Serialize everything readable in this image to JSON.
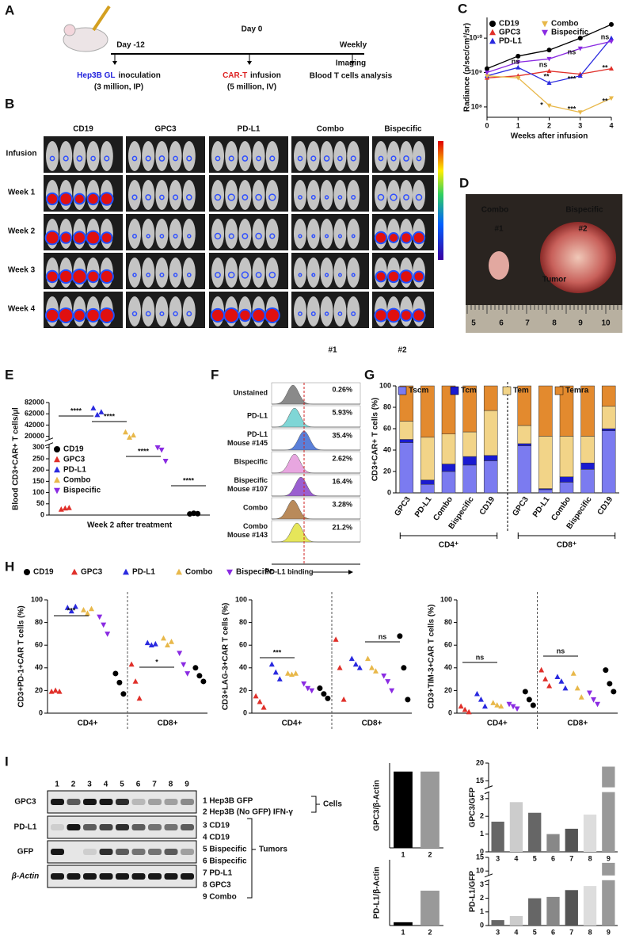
{
  "figure": {
    "A": {
      "label": "A",
      "day_minus12": "Day -12",
      "day0": "Day 0",
      "weekly": "Weekly",
      "inoculation_cells": "Hep3B GL",
      "inoculation": "inoculation",
      "inoculation_detail": "(3 million, IP)",
      "infusion_cells": "CAR-T",
      "infusion": "infusion",
      "infusion_detail": "(5 million, IV)",
      "imaging": "Imaging",
      "analysis": "Blood T cells analysis"
    },
    "B": {
      "label": "B",
      "columns": [
        "CD19",
        "GPC3",
        "PD-L1",
        "Combo",
        "Bispecific"
      ],
      "rows": [
        "Infusion",
        "Week 1",
        "Week 2",
        "Week 3",
        "Week 4"
      ],
      "tags": [
        "#1",
        "#2"
      ]
    },
    "D": {
      "label": "D",
      "groups": [
        "Combo",
        "Bispecific"
      ],
      "tags": [
        "#1",
        "#2"
      ],
      "tumor": "Tumor",
      "ruler": [
        "5",
        "6",
        "7",
        "8",
        "9",
        "10"
      ]
    },
    "F": {
      "label": "F",
      "xlabel": "PD-L1 binding",
      "rows": [
        {
          "label": [
            "Unstained"
          ],
          "percent": "0.26%",
          "color": "#8a8a8a"
        },
        {
          "label": [
            "PD-L1"
          ],
          "percent": "5.93%",
          "color": "#7fd6d6"
        },
        {
          "label": [
            "PD-L1",
            "Mouse #145"
          ],
          "percent": "35.4%",
          "color": "#5a7fd9"
        },
        {
          "label": [
            "Bispecific"
          ],
          "percent": "2.62%",
          "color": "#e8a6e0"
        },
        {
          "label": [
            "Bispecific",
            "Mouse #107"
          ],
          "percent": "16.4%",
          "color": "#9a5fd0"
        },
        {
          "label": [
            "Combo"
          ],
          "percent": "3.28%",
          "color": "#b98a5a"
        },
        {
          "label": [
            "Combo",
            "Mouse #143"
          ],
          "percent": "21.2%",
          "color": "#e6e65a"
        }
      ]
    },
    "I": {
      "label": "I",
      "lanes": [
        "1",
        "2",
        "3",
        "4",
        "5",
        "6",
        "7",
        "8",
        "9"
      ],
      "blots": [
        "GPC3",
        "PD-L1",
        "GFP",
        "β-Actin"
      ],
      "cells": [
        "1 Hep3B GFP",
        "2 Hep3B (No GFP) IFN-γ"
      ],
      "cells_label": "Cells",
      "tumors": [
        "3 CD19",
        "4 CD19",
        "5 Bispecific",
        "6 Bispecific",
        "7 PD-L1",
        "8 GPC3",
        "9 Combo"
      ],
      "tumors_label": "Tumors"
    }
  },
  "chart_data": [
    {
      "type": "line",
      "label": "C",
      "ylabel": "Radiance (p/sec/cm²/sr)",
      "xlabel": "Weeks after infusion",
      "x": [
        0,
        1,
        2,
        3,
        4
      ],
      "xlim": [
        0,
        4
      ],
      "xticks": [
        0,
        1,
        2,
        3,
        4
      ],
      "log": true,
      "ylim": [
        50000000,
        40000000000
      ],
      "yticks": [
        {
          "value": 100000000,
          "label": "10⁸"
        },
        {
          "value": 1000000000,
          "label": "10⁹"
        },
        {
          "value": 10000000000,
          "label": "10¹⁰"
        }
      ],
      "legend": "top",
      "series": [
        {
          "name": "CD19",
          "color": "#000000",
          "marker": "circle",
          "values": [
            1300000000,
            3000000000,
            4500000000,
            10000000000,
            25000000000
          ]
        },
        {
          "name": "GPC3",
          "color": "#e0302a",
          "marker": "triangle-up",
          "values": [
            700000000,
            800000000,
            1100000000,
            900000000,
            1300000000
          ]
        },
        {
          "name": "PD-L1",
          "color": "#2a2adf",
          "marker": "triangle-up",
          "values": [
            800000000,
            1400000000,
            500000000,
            800000000,
            10000000000
          ]
        },
        {
          "name": "Combo",
          "color": "#e8b84a",
          "marker": "triangle-down",
          "values": [
            800000000,
            700000000,
            110000000,
            70000000,
            180000000
          ]
        },
        {
          "name": "Bispecific",
          "color": "#8a2be2",
          "marker": "triangle-down",
          "values": [
            1000000000,
            2000000000,
            2500000000,
            5000000000,
            8000000000
          ]
        }
      ],
      "annotations": [
        "ns",
        "ns",
        "**",
        "*",
        "ns",
        "***",
        "***",
        "ns",
        "**",
        "**"
      ]
    },
    {
      "type": "dot",
      "label": "E",
      "ylabel": "Blood CD3+CAR+ T cells/µl",
      "xlabel": "Week 2 after treatment",
      "ylim": [
        0,
        82000
      ],
      "yticks": [
        0,
        50,
        100,
        150,
        200,
        250,
        300,
        20000,
        42000,
        62000,
        82000
      ],
      "axis_break": true,
      "legend": "left",
      "series": [
        {
          "name": "CD19",
          "color": "#000000",
          "marker": "circle",
          "values": [
            [
              5,
              8,
              6
            ]
          ]
        },
        {
          "name": "GPC3",
          "color": "#e0302a",
          "marker": "triangle-up",
          "values": [
            [
              25,
              30,
              32
            ]
          ]
        },
        {
          "name": "PD-L1",
          "color": "#2a2adf",
          "marker": "triangle-up",
          "values": [
            [
              72000,
              60000,
              65000
            ]
          ]
        },
        {
          "name": "Combo",
          "color": "#e8b84a",
          "marker": "triangle-up",
          "values": [
            [
              28000,
              18000,
              22000
            ]
          ]
        },
        {
          "name": "Bispecific",
          "color": "#8a2be2",
          "marker": "triangle-down",
          "values": [
            [
              330,
              290,
              240
            ]
          ]
        }
      ],
      "annotations": [
        "****",
        "****",
        "****",
        "****"
      ]
    },
    {
      "type": "stacked_bar",
      "label": "G",
      "ylabel": "CD3+CAR+ T cells (%)",
      "categories": [
        "GPC3",
        "PD-L1",
        "Combo",
        "Bispecific",
        "CD19",
        "GPC3",
        "PD-L1",
        "Combo",
        "Bispecific",
        "CD19"
      ],
      "groups": [
        "CD4⁺",
        "CD8⁺"
      ],
      "ylim": [
        0,
        100
      ],
      "yticks": [
        0,
        20,
        40,
        60,
        80,
        100
      ],
      "legend": "top",
      "series": [
        {
          "name": "Tscm",
          "color": "#7b7bf0",
          "values": [
            47,
            8,
            20,
            26,
            30,
            44,
            3,
            10,
            22,
            58
          ]
        },
        {
          "name": "Tcm",
          "color": "#1a1ad0",
          "values": [
            3,
            4,
            7,
            8,
            5,
            2,
            1,
            5,
            6,
            2
          ]
        },
        {
          "name": "Tem",
          "color": "#f2d488",
          "values": [
            17,
            40,
            28,
            23,
            42,
            17,
            49,
            38,
            25,
            21
          ]
        },
        {
          "name": "Temra",
          "color": "#e38a2e",
          "values": [
            33,
            48,
            45,
            43,
            23,
            37,
            47,
            47,
            47,
            19
          ]
        }
      ]
    },
    {
      "type": "dot",
      "label": "H",
      "ylabel": "CD3+PD-1+CAR T cells (%)",
      "categories": [
        "CD4+",
        "CD8+"
      ],
      "ylim": [
        0,
        100
      ],
      "yticks": [
        0,
        20,
        40,
        60,
        80,
        100
      ],
      "legend": "top",
      "series": [
        {
          "name": "CD19",
          "color": "#000000",
          "marker": "circle",
          "values": [
            [
              35,
              27,
              17
            ],
            [
              40,
              33,
              28
            ]
          ]
        },
        {
          "name": "GPC3",
          "color": "#e0302a",
          "marker": "triangle-up",
          "values": [
            [
              19,
              20,
              19
            ],
            [
              43,
              28,
              13
            ]
          ]
        },
        {
          "name": "PD-L1",
          "color": "#2a2adf",
          "marker": "triangle-up",
          "values": [
            [
              93,
              90,
              94
            ],
            [
              62,
              60,
              61
            ]
          ]
        },
        {
          "name": "Combo",
          "color": "#e8b84a",
          "marker": "triangle-up",
          "values": [
            [
              91,
              88,
              92
            ],
            [
              66,
              60,
              63
            ]
          ]
        },
        {
          "name": "Bispecific",
          "color": "#8a2be2",
          "marker": "triangle-down",
          "values": [
            [
              85,
              78,
              70
            ],
            [
              53,
              43,
              35
            ]
          ]
        }
      ],
      "annotations": [
        "***",
        "*"
      ]
    },
    {
      "type": "dot",
      "ylabel": "CD3+LAG-3+CAR T cells (%)",
      "categories": [
        "CD4+",
        "CD8+"
      ],
      "ylim": [
        0,
        100
      ],
      "yticks": [
        0,
        20,
        40,
        60,
        80,
        100
      ],
      "series": [
        {
          "color": "#000000",
          "marker": "circle",
          "values": [
            [
              22,
              17,
              13
            ],
            [
              68,
              40,
              12
            ]
          ]
        },
        {
          "color": "#e0302a",
          "marker": "triangle-up",
          "values": [
            [
              15,
              10,
              5
            ],
            [
              65,
              40,
              12
            ]
          ]
        },
        {
          "color": "#2a2adf",
          "marker": "triangle-up",
          "values": [
            [
              43,
              36,
              30
            ],
            [
              48,
              43,
              40
            ]
          ]
        },
        {
          "color": "#e8b84a",
          "marker": "triangle-up",
          "values": [
            [
              35,
              34,
              35
            ],
            [
              48,
              40,
              37
            ]
          ]
        },
        {
          "color": "#8a2be2",
          "marker": "triangle-down",
          "values": [
            [
              26,
              22,
              20
            ],
            [
              33,
              28,
              20
            ]
          ]
        }
      ],
      "annotations": [
        "***",
        "ns"
      ]
    },
    {
      "type": "dot",
      "ylabel": "CD3+TIM-3+CAR T cells (%)",
      "categories": [
        "CD4+",
        "CD8+"
      ],
      "ylim": [
        0,
        100
      ],
      "yticks": [
        0,
        20,
        40,
        60,
        80,
        100
      ],
      "series": [
        {
          "color": "#000000",
          "marker": "circle",
          "values": [
            [
              19,
              12,
              7
            ],
            [
              38,
              26,
              19
            ]
          ]
        },
        {
          "color": "#e0302a",
          "marker": "triangle-up",
          "values": [
            [
              6,
              3,
              1
            ],
            [
              38,
              30,
              24
            ]
          ]
        },
        {
          "color": "#2a2adf",
          "marker": "triangle-up",
          "values": [
            [
              17,
              12,
              6
            ],
            [
              32,
              28,
              22
            ]
          ]
        },
        {
          "color": "#e8b84a",
          "marker": "triangle-up",
          "values": [
            [
              9,
              7,
              6
            ],
            [
              35,
              22,
              14
            ]
          ]
        },
        {
          "color": "#8a2be2",
          "marker": "triangle-down",
          "values": [
            [
              8,
              6,
              4
            ],
            [
              18,
              12,
              8
            ]
          ]
        }
      ],
      "annotations": [
        "ns",
        "ns"
      ]
    },
    {
      "type": "bar",
      "ylabel": "GPC3/β-Actin",
      "categories": [
        "1",
        "2"
      ],
      "values": [
        0.9,
        0.9
      ],
      "colors": [
        "#000000",
        "#999999"
      ],
      "ylim": [
        0,
        1
      ],
      "yticks": []
    },
    {
      "type": "bar",
      "ylabel": "PD-L1/β-Actin",
      "categories": [
        "1",
        "2"
      ],
      "values": [
        0.05,
        0.53
      ],
      "colors": [
        "#000000",
        "#999999"
      ],
      "ylim": [
        0,
        1
      ],
      "yticks": []
    },
    {
      "type": "bar",
      "ylabel": "GPC3/GFP",
      "categories": [
        "3",
        "4",
        "5",
        "6",
        "7",
        "8",
        "9"
      ],
      "values": [
        1.7,
        2.8,
        2.2,
        1.0,
        1.3,
        2.1,
        19
      ],
      "colors": [
        "#666666",
        "#cccccc",
        "#666666",
        "#888888",
        "#555555",
        "#dddddd",
        "#999999"
      ],
      "ylim": [
        0,
        20
      ],
      "yticks": [
        0,
        1,
        2,
        3,
        15,
        20
      ],
      "axis_break": true
    },
    {
      "type": "bar",
      "ylabel": "PD-L1/GFP",
      "categories": [
        "3",
        "4",
        "5",
        "6",
        "7",
        "8",
        "9"
      ],
      "values": [
        0.4,
        0.7,
        2.0,
        2.1,
        2.6,
        2.9,
        13
      ],
      "colors": [
        "#666666",
        "#cccccc",
        "#666666",
        "#888888",
        "#555555",
        "#dddddd",
        "#999999"
      ],
      "ylim": [
        0,
        15
      ],
      "yticks": [
        0,
        1,
        2,
        3,
        10,
        15
      ],
      "axis_break": true
    }
  ]
}
